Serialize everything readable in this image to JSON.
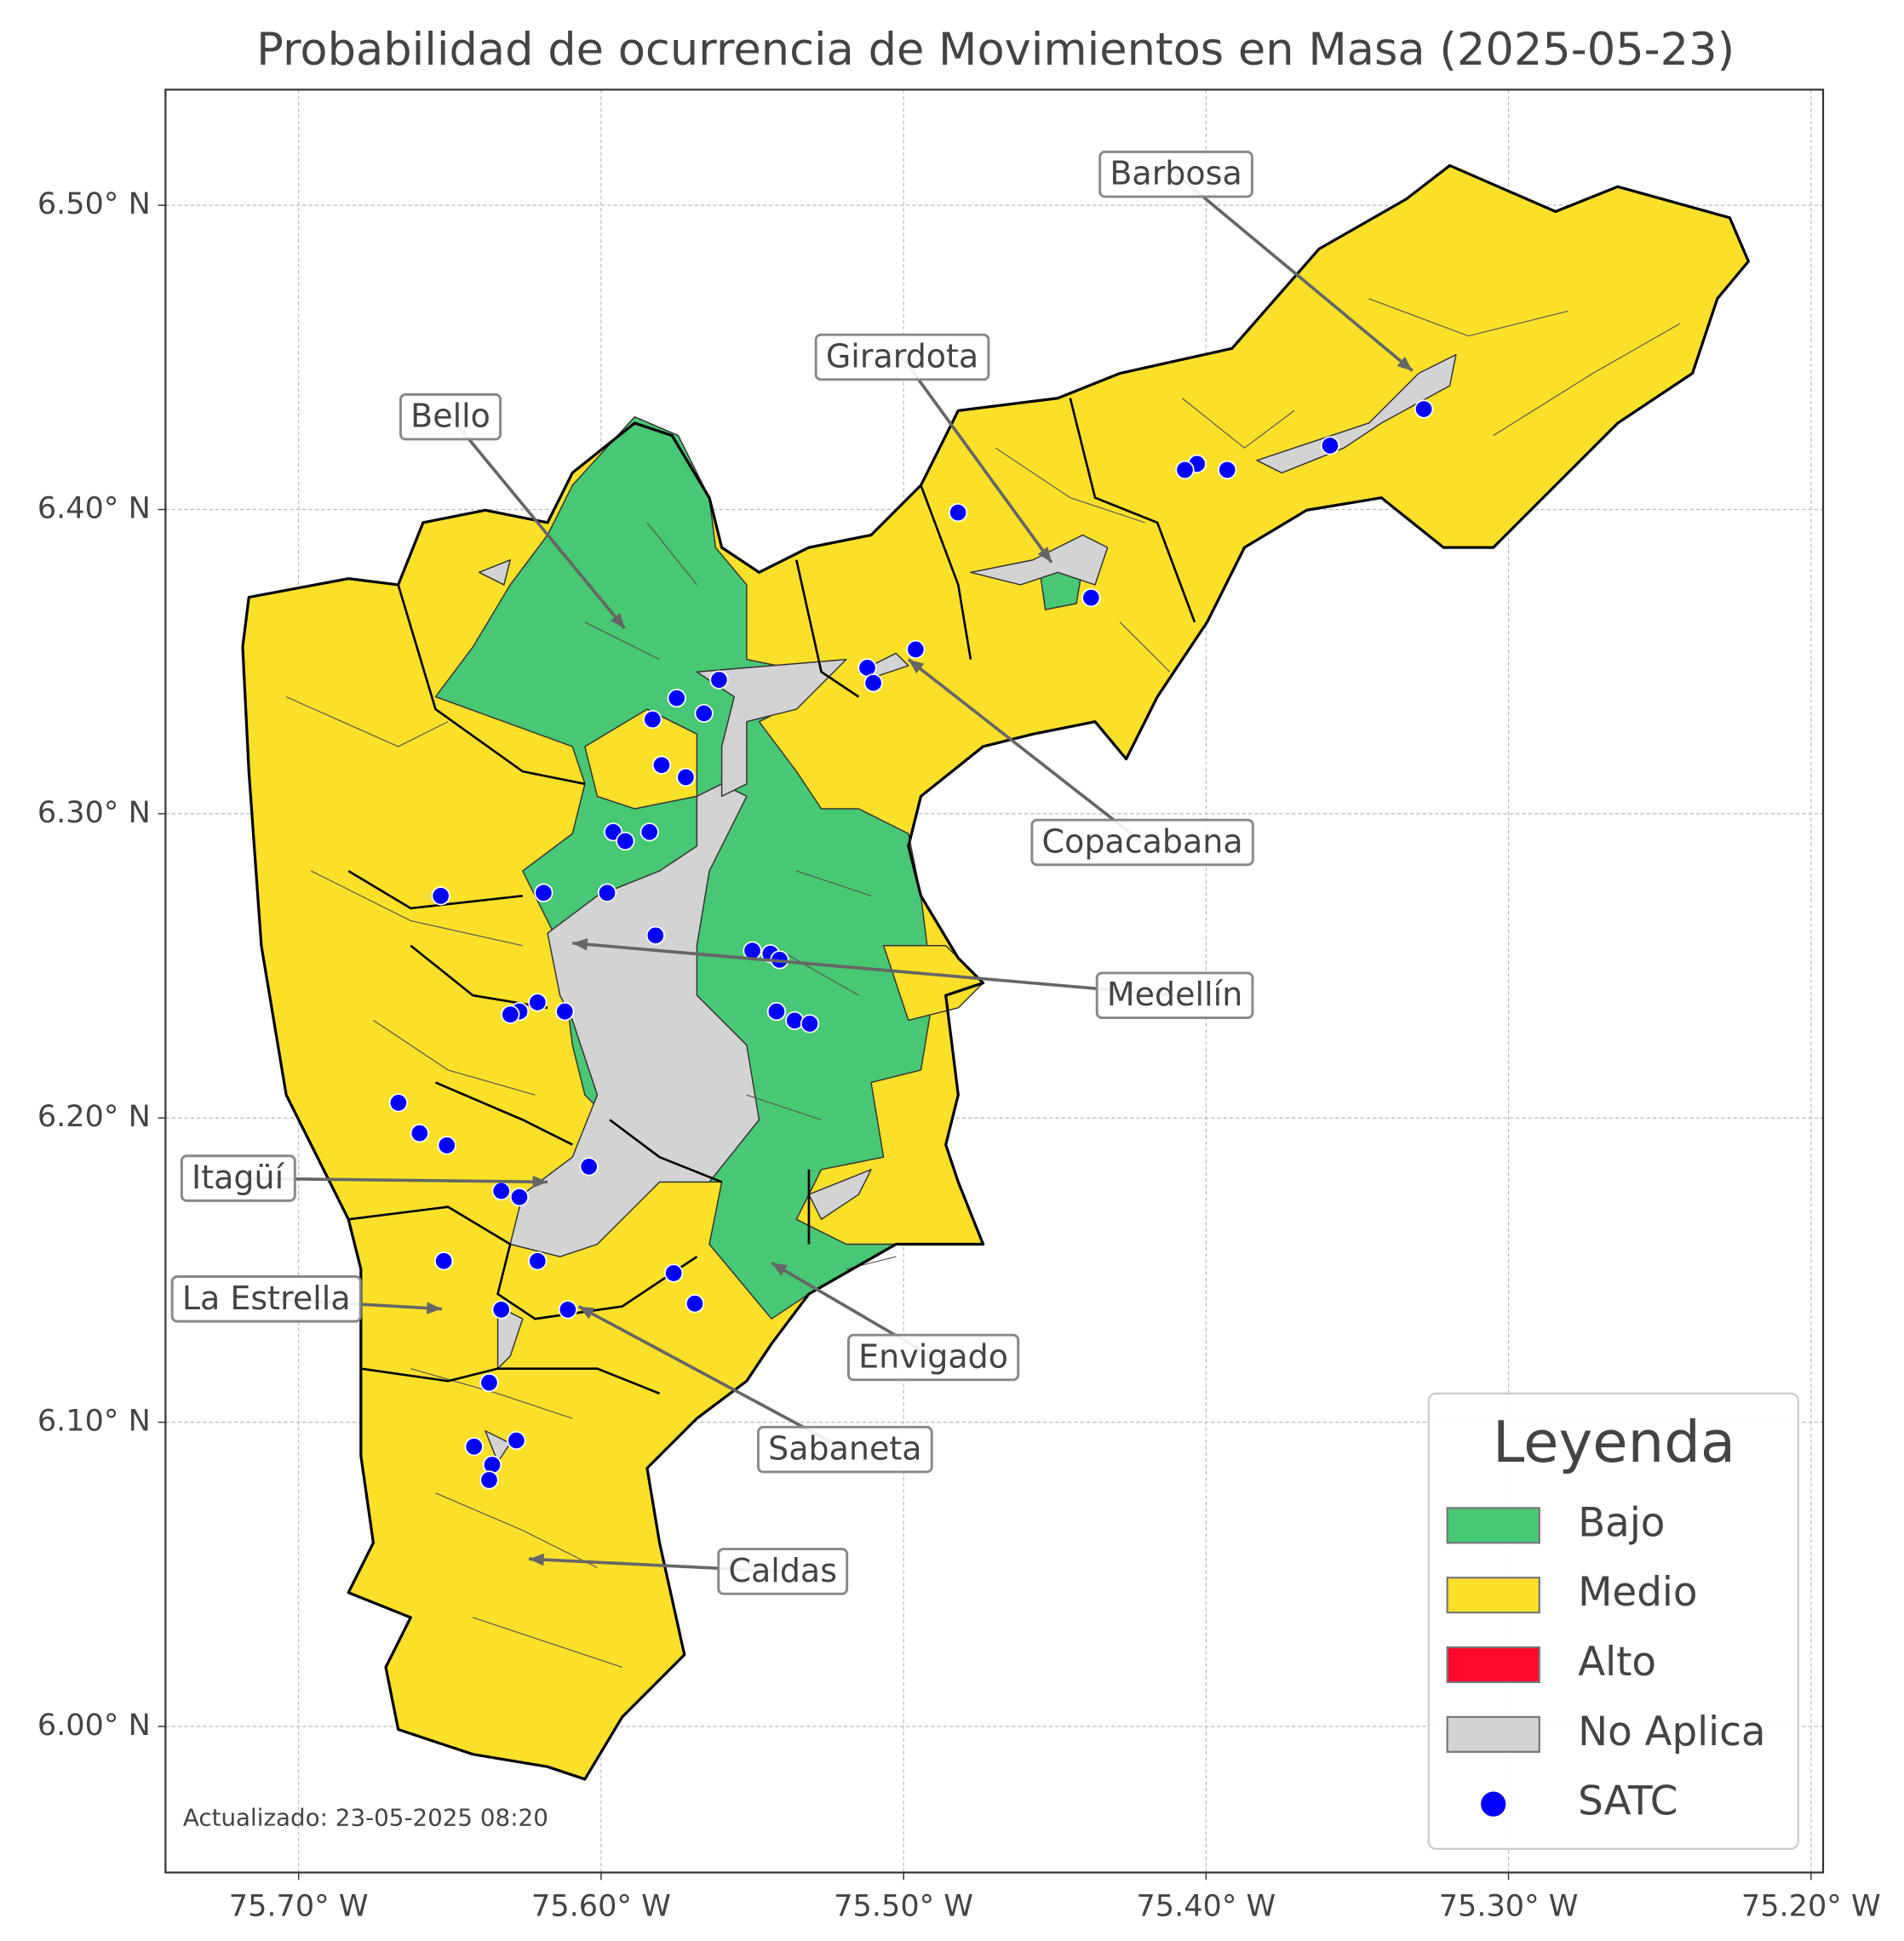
{
  "title": "Probabilidad de ocurrencia de Movimientos en Masa (2025-05-23)",
  "map": {
    "xlim": [
      -75.744,
      -75.196
    ],
    "ylim": [
      5.952,
      6.538
    ],
    "grid": true,
    "xticks": [
      {
        "value": -75.7,
        "label": "75.70° W"
      },
      {
        "value": -75.6,
        "label": "75.60° W"
      },
      {
        "value": -75.5,
        "label": "75.50° W"
      },
      {
        "value": -75.4,
        "label": "75.40° W"
      },
      {
        "value": -75.3,
        "label": "75.30° W"
      },
      {
        "value": -75.2,
        "label": "75.20° W"
      }
    ],
    "yticks": [
      {
        "value": 6.0,
        "label": "6.00° N"
      },
      {
        "value": 6.1,
        "label": "6.10° N"
      },
      {
        "value": 6.2,
        "label": "6.20° N"
      },
      {
        "value": 6.3,
        "label": "6.30° N"
      },
      {
        "value": 6.4,
        "label": "6.40° N"
      },
      {
        "value": 6.5,
        "label": "6.50° N"
      }
    ],
    "satc": {
      "color": "#0000ff",
      "lon": [
        -75.328,
        -75.359,
        -75.393,
        -75.403,
        -75.407,
        -75.482,
        -75.438,
        -75.496,
        -75.512,
        -75.51,
        -75.561,
        -75.575,
        -75.566,
        -75.583,
        -75.58,
        -75.572,
        -75.596,
        -75.592,
        -75.584,
        -75.619,
        -75.653,
        -75.598,
        -75.582,
        -75.55,
        -75.544,
        -75.541,
        -75.542,
        -75.536,
        -75.531,
        -75.621,
        -75.627,
        -75.63,
        -75.612,
        -75.667,
        -75.66,
        -75.651,
        -75.604,
        -75.633,
        -75.627,
        -75.652,
        -75.621,
        -75.576,
        -75.569,
        -75.633,
        -75.611,
        -75.637,
        -75.642,
        -75.628,
        -75.636,
        -75.637
      ],
      "lat": [
        6.433,
        6.421,
        6.413,
        6.415,
        6.413,
        6.399,
        6.371,
        6.354,
        6.348,
        6.343,
        6.344,
        6.338,
        6.333,
        6.331,
        6.316,
        6.312,
        6.294,
        6.291,
        6.294,
        6.274,
        6.273,
        6.274,
        6.26,
        6.255,
        6.254,
        6.252,
        6.235,
        6.232,
        6.231,
        6.238,
        6.235,
        6.234,
        6.235,
        6.205,
        6.195,
        6.191,
        6.184,
        6.176,
        6.174,
        6.153,
        6.153,
        6.149,
        6.139,
        6.137,
        6.137,
        6.113,
        6.092,
        6.094,
        6.086,
        6.081
      ]
    }
  },
  "annotations": [
    "Barbosa",
    "Girardota",
    "Bello",
    "Copacabana",
    "Medellín",
    "Itagüí",
    "La Estrella",
    "Envigado",
    "Sabaneta",
    "Caldas"
  ],
  "legend": {
    "title": "Leyenda",
    "items": [
      {
        "label": "Bajo",
        "color": "#48c774"
      },
      {
        "label": "Medio",
        "color": "#fbe02a"
      },
      {
        "label": "Alto",
        "color": "#ff0a2c"
      },
      {
        "label": "No Aplica",
        "color": "#d3d3d3"
      },
      {
        "label": "SATC"
      }
    ]
  },
  "footer": "Actualizado: 23-05-2025 08:20"
}
